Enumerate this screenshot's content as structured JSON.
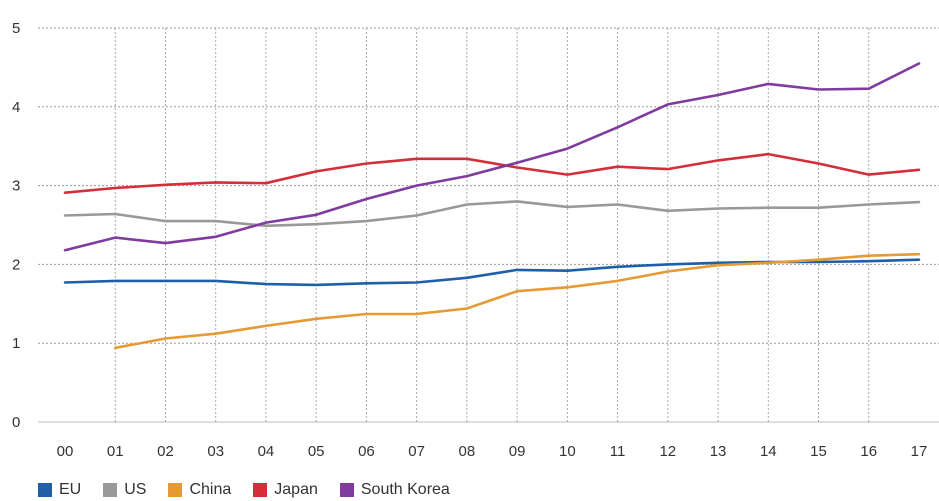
{
  "chart_data": {
    "type": "line",
    "title": "",
    "xlabel": "",
    "ylabel": "",
    "categories": [
      "00",
      "01",
      "02",
      "03",
      "04",
      "05",
      "06",
      "07",
      "08",
      "09",
      "10",
      "11",
      "12",
      "13",
      "14",
      "15",
      "16",
      "17"
    ],
    "y_ticks": [
      "0",
      "1",
      "2",
      "3",
      "4",
      "5"
    ],
    "ylim": [
      0,
      5
    ],
    "grid": true,
    "legend_position": "bottom-left",
    "series": [
      {
        "name": "EU",
        "color": "#1f5fa8",
        "values": [
          1.77,
          1.79,
          1.79,
          1.79,
          1.75,
          1.74,
          1.76,
          1.77,
          1.83,
          1.93,
          1.92,
          1.97,
          2.0,
          2.02,
          2.03,
          2.03,
          2.04,
          2.06
        ]
      },
      {
        "name": "US",
        "color": "#999999",
        "values": [
          2.62,
          2.64,
          2.55,
          2.55,
          2.49,
          2.51,
          2.55,
          2.62,
          2.76,
          2.8,
          2.73,
          2.76,
          2.68,
          2.71,
          2.72,
          2.72,
          2.76,
          2.79
        ]
      },
      {
        "name": "China",
        "color": "#e69a35",
        "values": [
          null,
          0.94,
          1.06,
          1.12,
          1.22,
          1.31,
          1.37,
          1.37,
          1.44,
          1.66,
          1.71,
          1.79,
          1.91,
          1.99,
          2.02,
          2.06,
          2.11,
          2.13
        ]
      },
      {
        "name": "Japan",
        "color": "#d42e3a",
        "values": [
          2.91,
          2.97,
          3.01,
          3.04,
          3.03,
          3.18,
          3.28,
          3.34,
          3.34,
          3.23,
          3.14,
          3.24,
          3.21,
          3.32,
          3.4,
          3.28,
          3.14,
          3.2
        ]
      },
      {
        "name": "South Korea",
        "color": "#7f3b9e",
        "values": [
          2.18,
          2.34,
          2.27,
          2.35,
          2.53,
          2.63,
          2.83,
          3.0,
          3.12,
          3.29,
          3.47,
          3.74,
          4.03,
          4.15,
          4.29,
          4.22,
          4.23,
          4.55
        ]
      }
    ]
  }
}
